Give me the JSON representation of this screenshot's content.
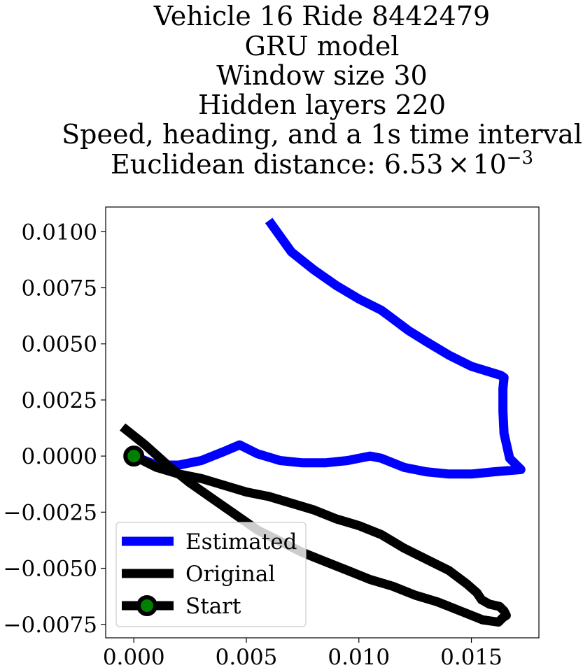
{
  "chart_data": {
    "type": "line",
    "title_lines": [
      "Vehicle 16 Ride 8442479",
      "GRU model",
      "Window size 30",
      "Hidden layers 220",
      "Speed, heading, and a 1s time interval"
    ],
    "distance_label": "Euclidean distance: 6.53",
    "distance_times": "×",
    "distance_base": "10",
    "distance_exponent": "−3",
    "xlim": [
      -0.00125,
      0.018
    ],
    "ylim": [
      -0.0081,
      0.0111
    ],
    "xticks": [
      {
        "value": 0.0,
        "label": "0.000"
      },
      {
        "value": 0.005,
        "label": "0.005"
      },
      {
        "value": 0.01,
        "label": "0.010"
      },
      {
        "value": 0.015,
        "label": "0.015"
      }
    ],
    "yticks": [
      {
        "value": 0.01,
        "label": "0.0100"
      },
      {
        "value": 0.0075,
        "label": "0.0075"
      },
      {
        "value": 0.005,
        "label": "0.0050"
      },
      {
        "value": 0.0025,
        "label": "0.0025"
      },
      {
        "value": 0.0,
        "label": "0.0000"
      },
      {
        "value": -0.0025,
        "label": "−0.0025"
      },
      {
        "value": -0.005,
        "label": "−0.0050"
      },
      {
        "value": -0.0075,
        "label": "−0.0075"
      }
    ],
    "legend_position": "lower-left",
    "series": [
      {
        "name": "Estimated",
        "color": "#0000ff",
        "x": [
          0.0,
          0.001,
          0.002,
          0.003,
          0.004,
          0.0047,
          0.0055,
          0.0065,
          0.0075,
          0.0085,
          0.0095,
          0.0105,
          0.011,
          0.012,
          0.013,
          0.014,
          0.015,
          0.016,
          0.0172,
          0.0167,
          0.01645,
          0.0164,
          0.0164,
          0.01645,
          0.0163,
          0.015,
          0.014,
          0.013,
          0.0122,
          0.0114,
          0.011,
          0.01,
          0.009,
          0.008,
          0.007,
          0.006
        ],
        "y": [
          0.0,
          -0.0004,
          -0.0004,
          -0.0002,
          0.0002,
          0.0005,
          0.0001,
          -0.0002,
          -0.0003,
          -0.0003,
          -0.0002,
          0.0,
          -0.0001,
          -0.0005,
          -0.0007,
          -0.0008,
          -0.0008,
          -0.0007,
          -0.0006,
          -0.0001,
          0.001,
          0.002,
          0.003,
          0.0035,
          0.0036,
          0.004,
          0.0045,
          0.0051,
          0.0056,
          0.0062,
          0.0065,
          0.007,
          0.0076,
          0.0083,
          0.0091,
          0.0105
        ]
      },
      {
        "name": "Original",
        "color": "#000000",
        "x": [
          -0.0005,
          0.0005,
          0.0015,
          0.0025,
          0.0035,
          0.0045,
          0.0055,
          0.0065,
          0.0075,
          0.0085,
          0.0095,
          0.0105,
          0.0115,
          0.0125,
          0.0135,
          0.0145,
          0.0155,
          0.0162,
          0.0164,
          0.01655,
          0.01645,
          0.01625,
          0.0158,
          0.01545,
          0.01525,
          0.0148,
          0.014,
          0.013,
          0.012,
          0.011,
          0.01,
          0.009,
          0.008,
          0.007,
          0.006,
          0.005,
          0.004,
          0.003,
          0.002,
          0.001,
          0.0
        ],
        "y": [
          0.0013,
          0.0005,
          -0.0004,
          -0.0012,
          -0.0019,
          -0.0026,
          -0.0033,
          -0.0038,
          -0.0043,
          -0.0047,
          -0.0051,
          -0.0055,
          -0.0058,
          -0.0062,
          -0.0065,
          -0.0069,
          -0.0073,
          -0.0074,
          -0.0072,
          -0.0071,
          -0.0069,
          -0.0067,
          -0.0066,
          -0.0064,
          -0.0061,
          -0.0057,
          -0.0051,
          -0.0046,
          -0.0041,
          -0.0035,
          -0.0031,
          -0.0028,
          -0.0024,
          -0.0021,
          -0.0018,
          -0.0016,
          -0.0013,
          -0.001,
          -0.0008,
          -0.0005,
          0.0
        ]
      },
      {
        "name": "Start",
        "color": "#000000",
        "marker_color": "#008000",
        "x": [
          0.0
        ],
        "y": [
          0.0
        ]
      }
    ]
  }
}
